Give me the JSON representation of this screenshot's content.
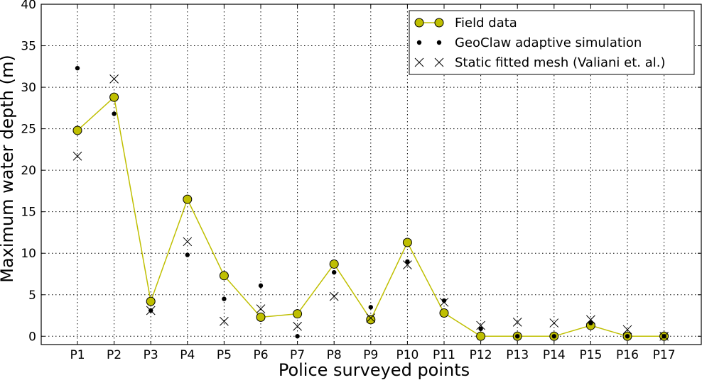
{
  "chart_data": {
    "type": "line",
    "title": "",
    "xlabel": "Police surveyed points",
    "ylabel": "Maximum water depth (m)",
    "ylim": [
      -1,
      40
    ],
    "yticks": [
      0,
      5,
      10,
      15,
      20,
      25,
      30,
      35,
      40
    ],
    "grid": true,
    "legend_position": "top-right",
    "categories": [
      "P1",
      "P2",
      "P3",
      "P4",
      "P5",
      "P6",
      "P7",
      "P8",
      "P9",
      "P10",
      "P11",
      "P12",
      "P13",
      "P14",
      "P15",
      "P16",
      "P17"
    ],
    "series": [
      {
        "name": "Field data",
        "style": "line-circle",
        "color": "#bfbf00",
        "values": [
          24.8,
          28.8,
          4.2,
          16.5,
          7.3,
          2.3,
          2.7,
          8.7,
          2.0,
          11.3,
          2.8,
          0.0,
          0.0,
          0.0,
          1.3,
          0.0,
          0.0
        ]
      },
      {
        "name": "GeoClaw adaptive simulation",
        "style": "dot",
        "color": "#000000",
        "values": [
          32.3,
          26.8,
          3.1,
          9.8,
          4.5,
          6.1,
          0.0,
          7.7,
          3.5,
          9.0,
          4.3,
          0.9,
          0.0,
          0.0,
          1.6,
          0.0,
          0.0
        ]
      },
      {
        "name": "Static fitted mesh (Valiani et. al.)",
        "style": "x",
        "color": "#000000",
        "values": [
          21.7,
          31.0,
          3.1,
          11.4,
          1.8,
          3.3,
          1.2,
          4.8,
          2.2,
          8.6,
          4.1,
          1.3,
          1.7,
          1.6,
          2.0,
          0.8,
          0.0
        ]
      }
    ]
  }
}
